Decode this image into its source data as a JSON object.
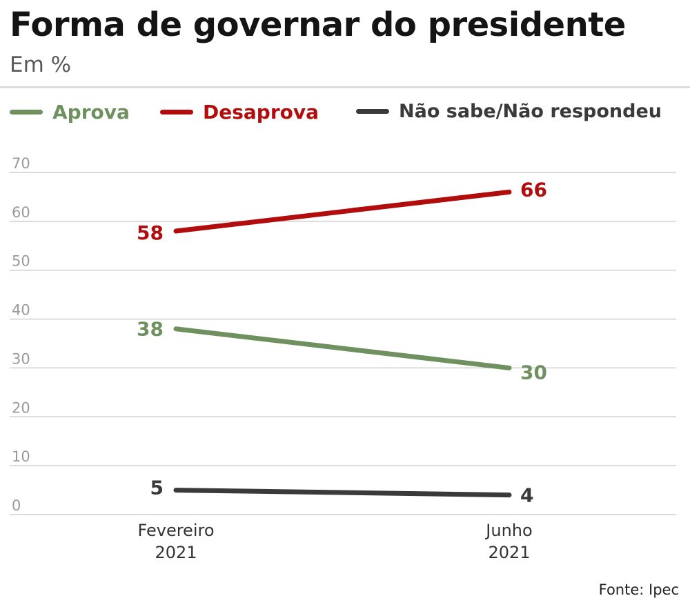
{
  "header": {
    "title": "Forma de governar do presidente",
    "subtitle": "Em %"
  },
  "colors": {
    "approve": "#6f9160",
    "disapprove": "#b20d0d",
    "unsure": "#3a3a3a",
    "grid": "#cfcfcf",
    "tick": "#9a9a9a",
    "axis_label": "#333333"
  },
  "chart_data": {
    "type": "line",
    "categories": [
      "Fevereiro\n2021",
      "Junho\n2021"
    ],
    "series": [
      {
        "name": "Aprova",
        "values": [
          38,
          30
        ],
        "color": "#6f9160"
      },
      {
        "name": "Desaprova",
        "values": [
          58,
          66
        ],
        "color": "#b20d0d"
      },
      {
        "name": "Não sabe/Não respondeu",
        "values": [
          5,
          4
        ],
        "color": "#3a3a3a"
      }
    ],
    "ylim": [
      0,
      70
    ],
    "yticks": [
      0,
      10,
      20,
      30,
      40,
      50,
      60,
      70
    ],
    "grid": true,
    "legend_position": "top"
  },
  "footer": {
    "source": "Fonte: Ipec"
  }
}
